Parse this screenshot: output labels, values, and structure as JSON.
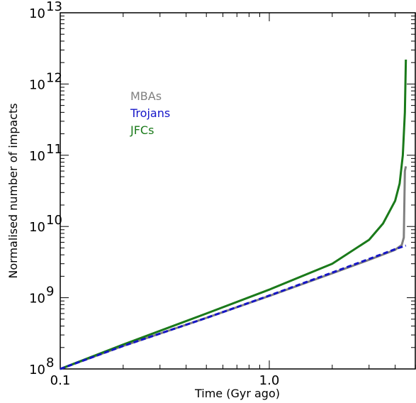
{
  "chart_data": {
    "type": "line",
    "title": "",
    "xlabel": "Time (Gyr ago)",
    "ylabel": "Normalised number of impacts",
    "xscale": "log",
    "yscale": "log",
    "xlim": [
      0.1,
      4.6
    ],
    "ylim": [
      100000000,
      10000000000000
    ],
    "x_ticks": [
      {
        "value": 0.1,
        "label": "0.1"
      },
      {
        "value": 1.0,
        "label": "1.0"
      }
    ],
    "y_ticks": [
      {
        "value": 100000000,
        "base": "10",
        "exp": "8"
      },
      {
        "value": 1000000000,
        "base": "10",
        "exp": "9"
      },
      {
        "value": 10000000000,
        "base": "10",
        "exp": "10"
      },
      {
        "value": 100000000000,
        "base": "10",
        "exp": "11"
      },
      {
        "value": 1000000000000,
        "base": "10",
        "exp": "12"
      },
      {
        "value": 10000000000000,
        "base": "10",
        "exp": "13"
      }
    ],
    "legend_position": "upper-left",
    "series": [
      {
        "name": "MBAs",
        "color": "#808080",
        "dash": "solid",
        "points": [
          [
            0.1,
            100000000
          ],
          [
            0.2,
            210000000
          ],
          [
            0.5,
            520000000
          ],
          [
            1.0,
            1060000000
          ],
          [
            2.0,
            2200000000
          ],
          [
            3.0,
            3400000000
          ],
          [
            4.0,
            4700000000
          ],
          [
            4.3,
            5500000000
          ],
          [
            4.4,
            7000000000
          ],
          [
            4.45,
            60000000000
          ],
          [
            4.5,
            70000000000
          ]
        ]
      },
      {
        "name": "Trojans",
        "color": "#1515c8",
        "dash": "dashed",
        "points": [
          [
            0.1,
            100000000
          ],
          [
            0.2,
            210000000
          ],
          [
            0.5,
            520000000
          ],
          [
            1.0,
            1070000000
          ],
          [
            2.0,
            2250000000
          ],
          [
            3.0,
            3500000000
          ],
          [
            4.0,
            4800000000
          ],
          [
            4.5,
            5400000000
          ]
        ]
      },
      {
        "name": "JFCs",
        "color": "#1a7a1a",
        "dash": "solid",
        "points": [
          [
            0.1,
            100000000
          ],
          [
            0.2,
            220000000
          ],
          [
            0.5,
            600000000
          ],
          [
            1.0,
            1300000000
          ],
          [
            2.0,
            3000000000
          ],
          [
            3.0,
            6500000000
          ],
          [
            3.5,
            11000000000
          ],
          [
            4.0,
            23000000000
          ],
          [
            4.2,
            40000000000
          ],
          [
            4.35,
            100000000000
          ],
          [
            4.45,
            400000000000
          ],
          [
            4.5,
            2200000000000
          ]
        ]
      }
    ]
  }
}
